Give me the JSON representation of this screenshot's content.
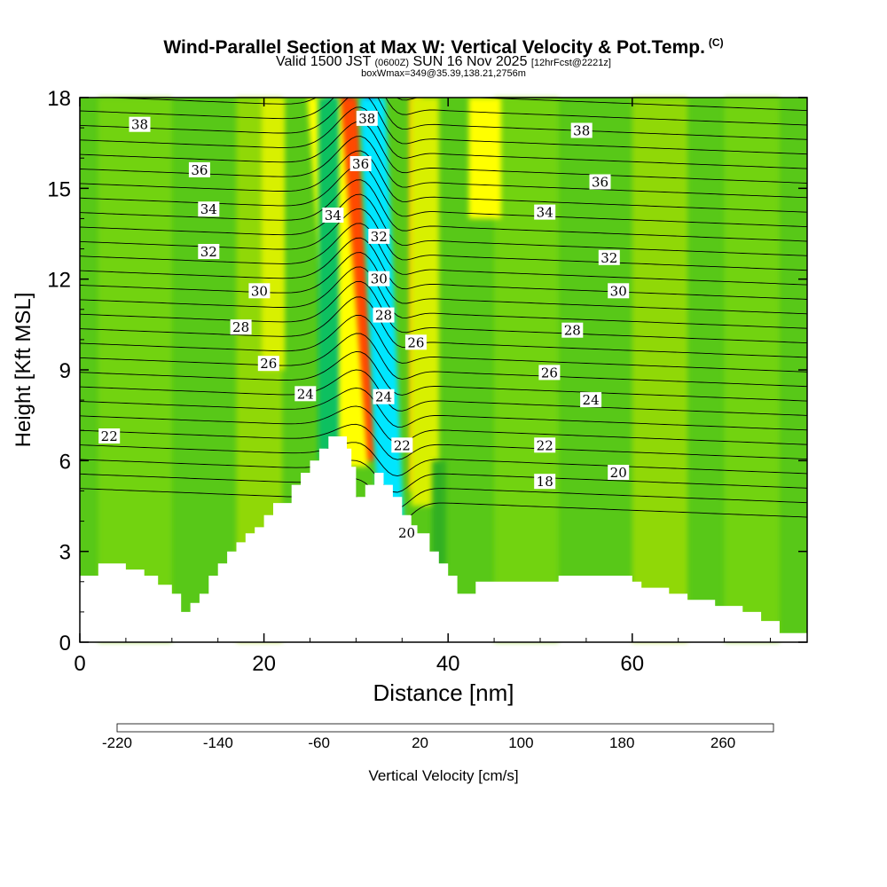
{
  "header": {
    "title": "Wind-Parallel Section at Max W: Vertical Velocity & Pot.Temp.",
    "copyright": "(C)",
    "valid_prefix": "Valid 1500 JST",
    "valid_utc": "(0600Z)",
    "valid_date": "SUN 16 Nov 2025",
    "forecast_info": "[12hrFcst@2221z]",
    "box_info": "boxWmax=349@35.39,138.21,2756m"
  },
  "chart_data": {
    "type": "heatmap",
    "xlabel": "Distance [nm]",
    "ylabel": "Height [Kft MSL]",
    "xlim": [
      0,
      79
    ],
    "ylim": [
      0,
      18
    ],
    "x_ticks": [
      0,
      20,
      40,
      60
    ],
    "y_ticks": [
      0,
      3,
      6,
      9,
      12,
      15,
      18
    ],
    "colorbar": {
      "label": "Vertical Velocity [cm/s]",
      "tick_labels": [
        "-220",
        "-140",
        "-60",
        "20",
        "100",
        "180",
        "260"
      ],
      "tick_values": [
        -220,
        -140,
        -60,
        20,
        100,
        180,
        260
      ],
      "range": [
        -220,
        300
      ],
      "colors": [
        "#0000ff",
        "#1a3cff",
        "#0a78f5",
        "#00b4ff",
        "#00e6ff",
        "#00e6c8",
        "#00d2a0",
        "#10c060",
        "#30b020",
        "#58c818",
        "#7ed810",
        "#a8e000",
        "#d8f000",
        "#ffff00",
        "#ffe000",
        "#ffc000",
        "#ffa000",
        "#ff7a00",
        "#ff4a00",
        "#ff1a00",
        "#e00000",
        "#c80020",
        "#a00040",
        "#800060",
        "#600080"
      ]
    },
    "theta_contour_labels": [
      {
        "value": "38",
        "x": 6.5,
        "y": 17.1
      },
      {
        "value": "36",
        "x": 13,
        "y": 15.6
      },
      {
        "value": "34",
        "x": 14,
        "y": 14.3
      },
      {
        "value": "32",
        "x": 14,
        "y": 12.9
      },
      {
        "value": "30",
        "x": 19.5,
        "y": 11.6
      },
      {
        "value": "28",
        "x": 17.5,
        "y": 10.4
      },
      {
        "value": "26",
        "x": 20.5,
        "y": 9.2
      },
      {
        "value": "24",
        "x": 24.5,
        "y": 8.2
      },
      {
        "value": "22",
        "x": 3.2,
        "y": 6.8
      },
      {
        "value": "38",
        "x": 31.2,
        "y": 17.3
      },
      {
        "value": "36",
        "x": 30.5,
        "y": 15.8
      },
      {
        "value": "34",
        "x": 27.5,
        "y": 14.1
      },
      {
        "value": "32",
        "x": 32.5,
        "y": 13.4
      },
      {
        "value": "30",
        "x": 32.5,
        "y": 12.0
      },
      {
        "value": "28",
        "x": 33,
        "y": 10.8
      },
      {
        "value": "26",
        "x": 36.5,
        "y": 9.9
      },
      {
        "value": "24",
        "x": 33,
        "y": 8.1
      },
      {
        "value": "22",
        "x": 35,
        "y": 6.5
      },
      {
        "value": "20",
        "x": 35.5,
        "y": 3.6
      },
      {
        "value": "38",
        "x": 54.5,
        "y": 16.9
      },
      {
        "value": "36",
        "x": 56.5,
        "y": 15.2
      },
      {
        "value": "34",
        "x": 50.5,
        "y": 14.2
      },
      {
        "value": "32",
        "x": 57.5,
        "y": 12.7
      },
      {
        "value": "30",
        "x": 58.5,
        "y": 11.6
      },
      {
        "value": "28",
        "x": 53.5,
        "y": 10.3
      },
      {
        "value": "26",
        "x": 51,
        "y": 8.9
      },
      {
        "value": "24",
        "x": 55.5,
        "y": 8.0
      },
      {
        "value": "22",
        "x": 50.5,
        "y": 6.5
      },
      {
        "value": "20",
        "x": 58.5,
        "y": 5.6
      },
      {
        "value": "18",
        "x": 50.5,
        "y": 5.3
      }
    ],
    "terrain_profile": {
      "x": [
        0,
        2,
        2,
        5,
        5,
        7,
        7,
        8.5,
        8.5,
        10,
        10,
        11,
        11,
        12,
        12,
        13,
        13,
        14,
        14,
        15,
        15,
        16,
        16,
        17,
        17,
        18,
        18,
        19,
        19,
        20,
        20,
        21,
        21,
        23,
        23,
        24,
        24,
        25,
        25,
        26,
        26,
        27,
        27,
        29,
        29,
        29.5,
        29.5,
        30,
        30,
        31,
        31,
        32,
        32,
        33,
        33,
        34,
        34,
        35,
        35,
        36,
        36,
        38,
        38,
        39,
        39,
        40,
        40,
        41,
        41,
        43,
        43,
        52,
        52,
        60,
        60,
        61,
        61,
        64,
        64,
        66,
        66,
        69,
        69,
        72,
        72,
        74,
        74,
        76,
        76,
        79
      ],
      "y": [
        2.2,
        2.2,
        2.6,
        2.6,
        2.4,
        2.4,
        2.2,
        2.2,
        1.9,
        1.9,
        1.6,
        1.6,
        1.0,
        1.0,
        1.3,
        1.3,
        1.6,
        1.6,
        2.2,
        2.2,
        2.6,
        2.6,
        3.0,
        3.0,
        3.3,
        3.3,
        3.6,
        3.6,
        3.8,
        3.8,
        4.2,
        4.2,
        4.6,
        4.6,
        5.2,
        5.2,
        5.6,
        5.6,
        6.0,
        6.0,
        6.4,
        6.4,
        6.8,
        6.8,
        6.4,
        6.4,
        5.8,
        5.8,
        4.8,
        4.8,
        5.2,
        5.2,
        5.6,
        5.6,
        5.2,
        5.2,
        4.8,
        4.8,
        4.2,
        4.2,
        3.6,
        3.6,
        3.0,
        3.0,
        2.6,
        2.6,
        2.2,
        2.2,
        1.6,
        1.6,
        2.0,
        2.0,
        2.2,
        2.2,
        2.0,
        2.0,
        1.8,
        1.8,
        1.6,
        1.6,
        1.4,
        1.4,
        1.2,
        1.2,
        1.0,
        1.0,
        0.7,
        0.7,
        0.3,
        0.3
      ]
    },
    "velocity_features": [
      {
        "x": 31,
        "y_bottom": 7,
        "y_top": 18,
        "width": 1.2,
        "lean": -2.0,
        "value": 260
      },
      {
        "x": 30.8,
        "y_bottom": 6,
        "y_top": 18,
        "width": 2.6,
        "lean": -2.0,
        "value": 160
      },
      {
        "x": 29.5,
        "y_bottom": 5.8,
        "y_top": 18,
        "width": 3.6,
        "lean": -3.0,
        "value": 60
      },
      {
        "x": 33.5,
        "y_bottom": 4,
        "y_top": 18,
        "width": 1.2,
        "lean": -2.0,
        "value": -200
      },
      {
        "x": 33.8,
        "y_bottom": 3.8,
        "y_top": 18,
        "width": 2.8,
        "lean": -2.0,
        "value": -120
      },
      {
        "x": 27.2,
        "y_bottom": 6.5,
        "y_top": 18,
        "width": 1.1,
        "lean": 0,
        "value": -140
      },
      {
        "x": 27.0,
        "y_bottom": 6,
        "y_top": 18,
        "width": 2.2,
        "lean": 0,
        "value": -60
      },
      {
        "x": 36.5,
        "y_bottom": 5,
        "y_top": 18,
        "width": 1.4,
        "lean": 0,
        "value": 100
      },
      {
        "x": 37.5,
        "y_bottom": 4.5,
        "y_top": 18,
        "width": 3.0,
        "lean": 0,
        "value": 40
      },
      {
        "x": 44,
        "y_bottom": 14,
        "y_top": 18,
        "width": 3.5,
        "lean": 0,
        "value": 60
      },
      {
        "x": 21,
        "y_bottom": 9,
        "y_top": 18,
        "width": 2.5,
        "lean": 0,
        "value": 30
      },
      {
        "x": 39,
        "y_bottom": 2.5,
        "y_top": 6,
        "width": 1.5,
        "lean": 0,
        "value": -40
      }
    ]
  }
}
